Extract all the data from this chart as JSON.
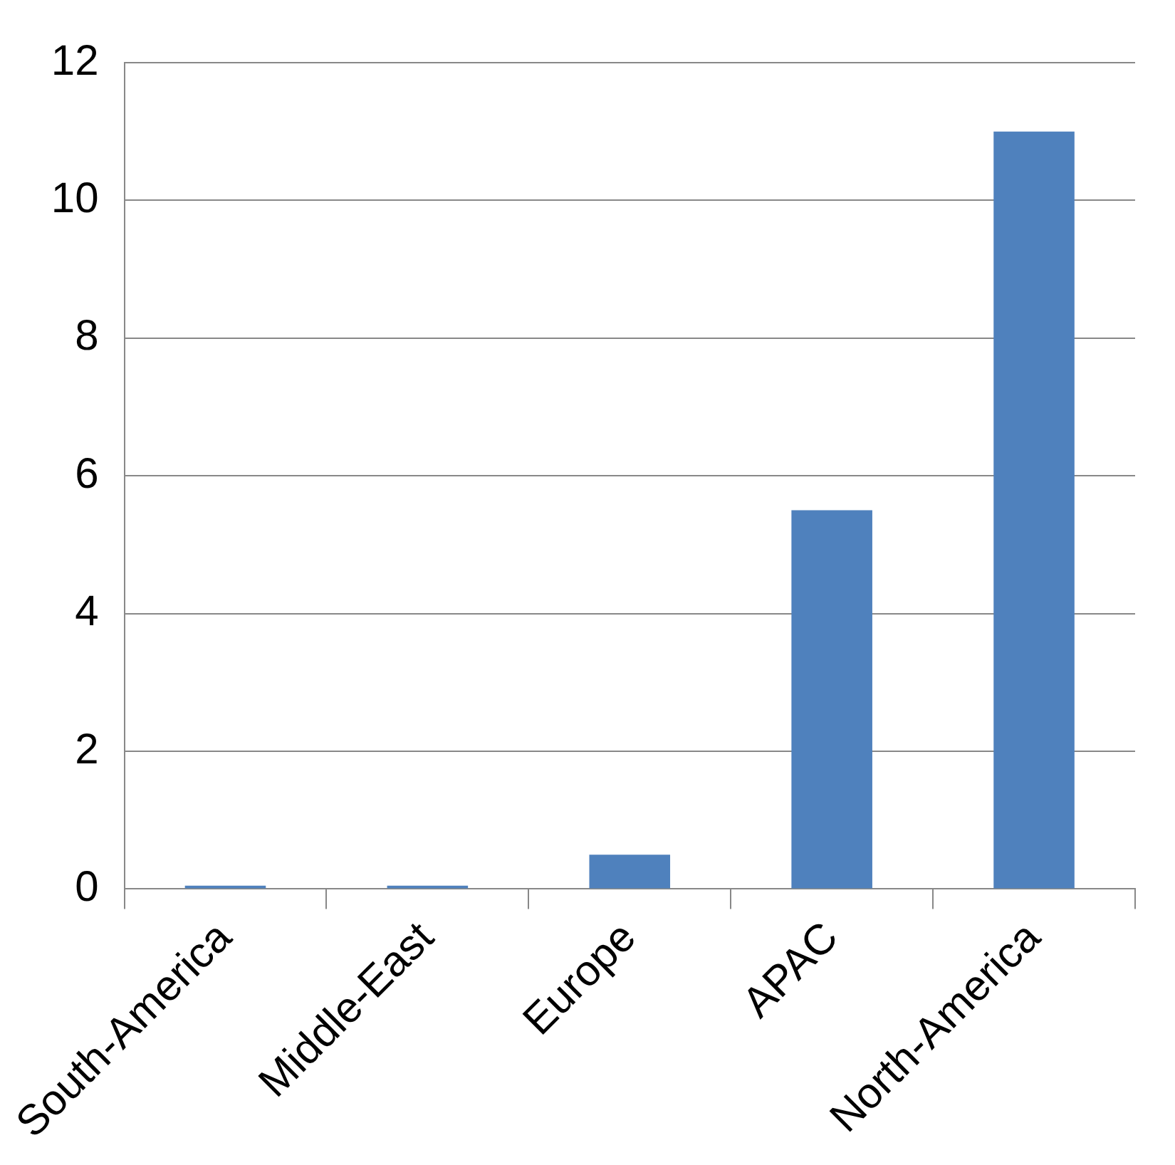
{
  "chart_data": {
    "type": "bar",
    "categories": [
      "South-America",
      "Middle-East",
      "Europe",
      "APAC",
      "North-America"
    ],
    "values": [
      0.05,
      0.05,
      0.5,
      5.5,
      11
    ],
    "color": "#4f81bd",
    "ylim": [
      0,
      12
    ],
    "yticks": [
      0,
      2,
      4,
      6,
      8,
      10,
      12
    ],
    "grid": "y",
    "legend": false
  }
}
